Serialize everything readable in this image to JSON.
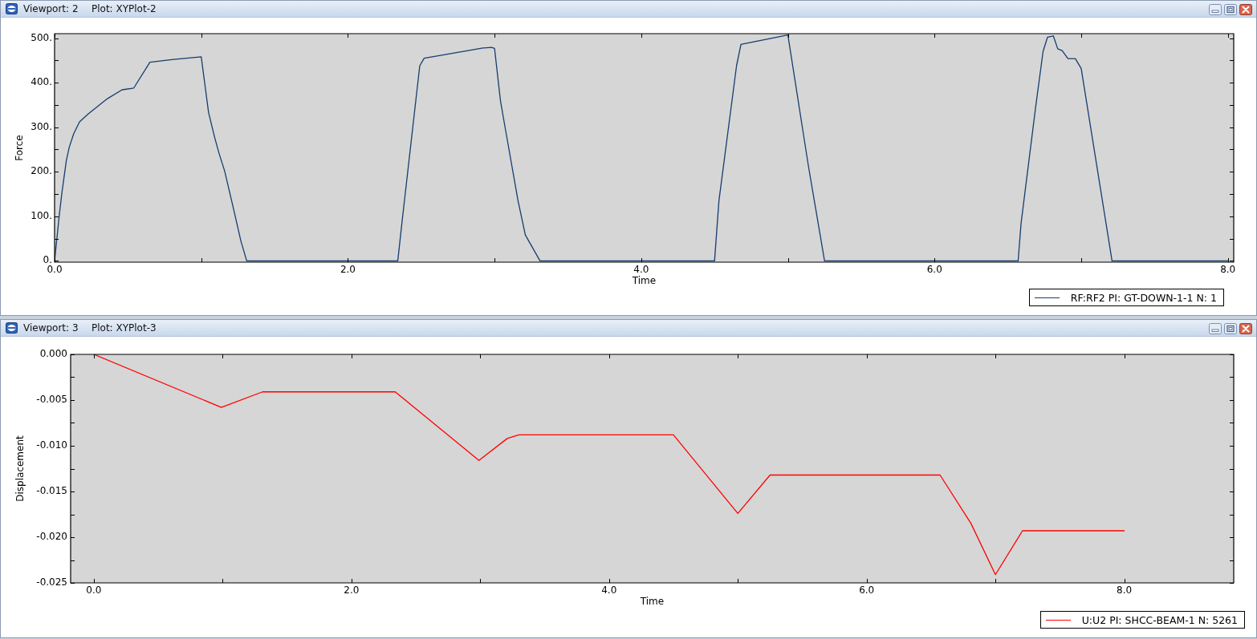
{
  "chart_data": [
    {
      "type": "line",
      "title": "Viewport: 2",
      "subtitle": "Plot: XYPlot-2",
      "xlabel": "Time",
      "ylabel": "Force",
      "legend": "bottom right",
      "xlim": [
        0,
        8.04
      ],
      "xticks": [
        {
          "value": 0,
          "label": "0.0"
        },
        {
          "value": 1,
          "label": null
        },
        {
          "value": 2,
          "label": "2.0"
        },
        {
          "value": 3,
          "label": null
        },
        {
          "value": 4,
          "label": "4.0"
        },
        {
          "value": 5,
          "label": null
        },
        {
          "value": 6,
          "label": "6.0"
        },
        {
          "value": 7,
          "label": null
        },
        {
          "value": 8,
          "label": "8.0"
        }
      ],
      "ylim": [
        -3,
        510
      ],
      "yticks": [
        {
          "value": 0,
          "label": "0."
        },
        {
          "value": 50,
          "label": null
        },
        {
          "value": 100,
          "label": "100."
        },
        {
          "value": 150,
          "label": null
        },
        {
          "value": 200,
          "label": "200."
        },
        {
          "value": 250,
          "label": null
        },
        {
          "value": 300,
          "label": "300."
        },
        {
          "value": 350,
          "label": null
        },
        {
          "value": 400,
          "label": "400."
        },
        {
          "value": 450,
          "label": null
        },
        {
          "value": 500,
          "label": "500."
        }
      ],
      "series": [
        {
          "name": "RF:RF2 PI: GT-DOWN-1-1 N: 1",
          "color": "#163d6e",
          "x": [
            0,
            0.03,
            0.05,
            0.08,
            0.1,
            0.13,
            0.17,
            0.23,
            0.36,
            0.46,
            0.54,
            0.65,
            0.81,
            1.0,
            1.05,
            1.09,
            1.12,
            1.16,
            1.22,
            1.27,
            1.31,
            2.34,
            2.37,
            2.49,
            2.52,
            2.92,
            2.98,
            3.0,
            3.04,
            3.07,
            3.16,
            3.21,
            3.31,
            4.5,
            4.53,
            4.65,
            4.68,
            5.0,
            5.14,
            5.25,
            6.57,
            6.59,
            6.69,
            6.74,
            6.77,
            6.81,
            6.84,
            6.87,
            6.91,
            6.96,
            7.0,
            7.2,
            7.21,
            8.0
          ],
          "values": [
            0,
            96,
            153,
            225,
            255,
            285,
            312,
            330,
            364,
            384,
            388,
            446,
            452,
            458,
            333,
            279,
            243,
            201,
            117,
            45,
            0,
            0,
            90,
            438,
            455,
            478,
            479,
            477,
            360,
            303,
            135,
            58,
            0,
            0,
            135,
            438,
            486,
            507,
            213,
            0,
            0,
            84,
            347,
            470,
            502,
            505,
            476,
            472,
            454,
            454,
            432,
            21,
            0,
            0
          ]
        }
      ]
    },
    {
      "type": "line",
      "title": "Viewport: 3",
      "subtitle": "Plot: XYPlot-3",
      "xlabel": "Time",
      "ylabel": "Displacement",
      "legend": "bottom right",
      "xlim": [
        -0.18,
        8.85
      ],
      "xticks": [
        {
          "value": 0,
          "label": "0.0"
        },
        {
          "value": 1,
          "label": null
        },
        {
          "value": 2,
          "label": "2.0"
        },
        {
          "value": 3,
          "label": null
        },
        {
          "value": 4,
          "label": "4.0"
        },
        {
          "value": 5,
          "label": null
        },
        {
          "value": 6,
          "label": "6.0"
        },
        {
          "value": 7,
          "label": null
        },
        {
          "value": 8,
          "label": "8.0"
        }
      ],
      "ylim": [
        -0.025,
        0
      ],
      "yticks": [
        {
          "value": -0.025,
          "label": "-0.025"
        },
        {
          "value": -0.0225,
          "label": null
        },
        {
          "value": -0.02,
          "label": "-0.020"
        },
        {
          "value": -0.0175,
          "label": null
        },
        {
          "value": -0.015,
          "label": "-0.015"
        },
        {
          "value": -0.0125,
          "label": null
        },
        {
          "value": -0.01,
          "label": "-0.010"
        },
        {
          "value": -0.0075,
          "label": null
        },
        {
          "value": -0.005,
          "label": "-0.005"
        },
        {
          "value": -0.0025,
          "label": null
        },
        {
          "value": 0,
          "label": "0.000"
        }
      ],
      "series": [
        {
          "name": "U:U2 PI: SHCC-BEAM-1 N: 5261",
          "color": "#ff0000",
          "x": [
            0,
            0.99,
            1.31,
            2.34,
            2.99,
            3.21,
            3.3,
            4.5,
            5.0,
            5.25,
            6.57,
            6.81,
            7.0,
            7.21,
            8.0
          ],
          "values": [
            0,
            -0.0058,
            -0.0041,
            -0.0041,
            -0.0116,
            -0.0092,
            -0.0088,
            -0.0088,
            -0.0174,
            -0.0132,
            -0.0132,
            -0.0185,
            -0.0241,
            -0.0193,
            -0.0193
          ]
        }
      ]
    }
  ]
}
